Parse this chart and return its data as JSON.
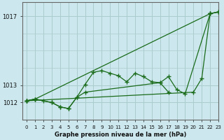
{
  "xlabel": "Graphe pression niveau de la mer (hPa)",
  "background_color": "#cce8ee",
  "grid_color": "#aacccc",
  "line_color": "#1a6b1a",
  "xlim": [
    -0.5,
    23
  ],
  "ylim": [
    1011.2,
    1017.8
  ],
  "ytick_vals": [
    1012,
    1013,
    1017
  ],
  "xticks": [
    0,
    1,
    2,
    3,
    4,
    5,
    6,
    7,
    8,
    9,
    10,
    11,
    12,
    13,
    14,
    15,
    16,
    17,
    18,
    19,
    20,
    21,
    22,
    23
  ],
  "series": [
    {
      "x": [
        0,
        1,
        2,
        3,
        4,
        5,
        6,
        7,
        8,
        9,
        10,
        11,
        12,
        13,
        14,
        15,
        16,
        17
      ],
      "y": [
        1012.1,
        1012.2,
        1012.1,
        1012.0,
        1011.75,
        1011.65,
        1012.3,
        1013.05,
        1013.75,
        1013.85,
        1013.7,
        1013.55,
        1013.2,
        1013.7,
        1013.5,
        1013.2,
        1013.15,
        1012.6
      ]
    },
    {
      "x": [
        0,
        1,
        3,
        4,
        5,
        6,
        7,
        16,
        17,
        18,
        19,
        22,
        23
      ],
      "y": [
        1012.1,
        1012.2,
        1012.0,
        1011.75,
        1011.65,
        1012.3,
        1012.6,
        1013.15,
        1013.5,
        1012.75,
        1012.5,
        1017.15,
        1017.25
      ]
    },
    {
      "x": [
        0,
        1,
        22,
        23
      ],
      "y": [
        1012.1,
        1012.2,
        1017.15,
        1017.25
      ]
    },
    {
      "x": [
        0,
        20,
        21,
        22,
        23
      ],
      "y": [
        1012.1,
        1012.6,
        1013.4,
        1017.15,
        1017.25
      ]
    }
  ]
}
